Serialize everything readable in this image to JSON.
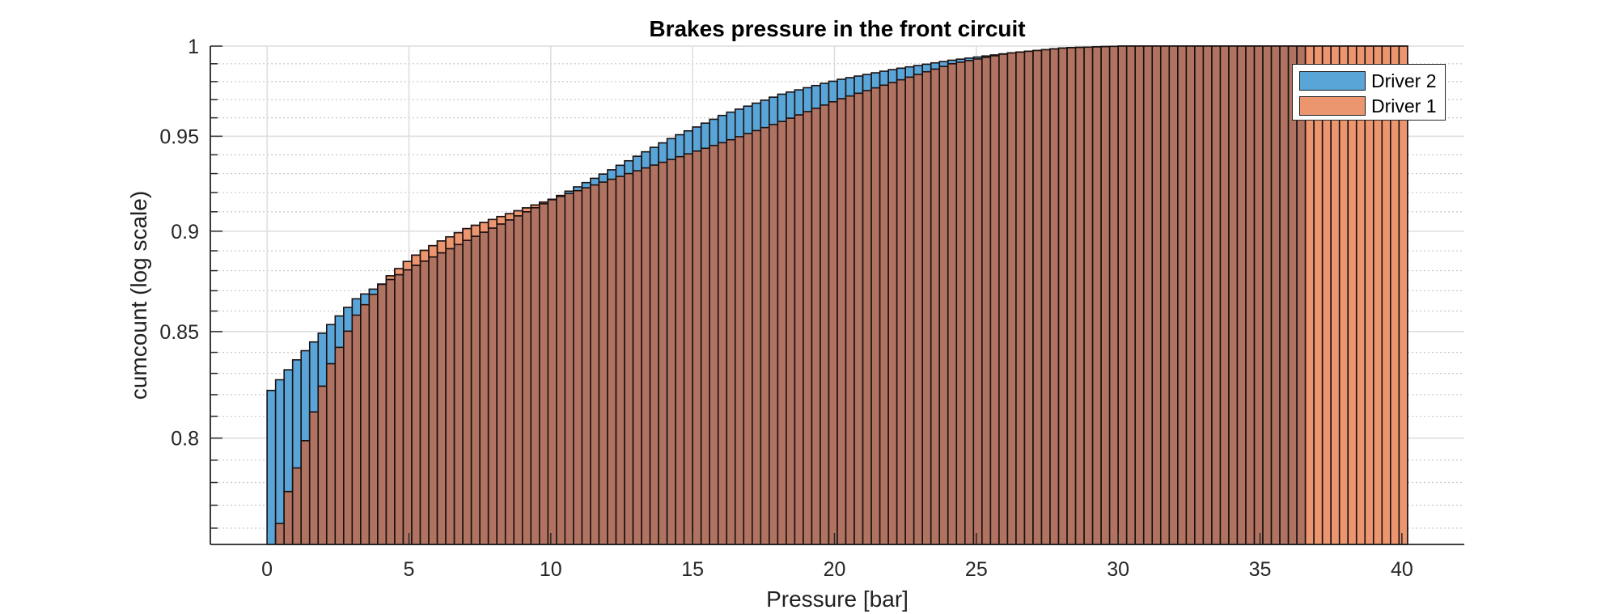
{
  "chart_data": {
    "type": "bar",
    "subtype": "cumulative histogram (overlaid)",
    "title": "Brakes pressure in the front circuit",
    "xlabel": "Pressure [bar]",
    "ylabel": "cumcount (log scale)",
    "xlim": [
      -2,
      42.2
    ],
    "ylim": [
      0.753,
      1
    ],
    "yscale": "log",
    "xticks": [
      0,
      5,
      10,
      15,
      20,
      25,
      30,
      35,
      40
    ],
    "yticks": [
      0.8,
      0.85,
      0.9,
      0.95,
      1
    ],
    "ytick_labels": [
      "0.8",
      "0.85",
      "0.9",
      "0.95",
      "1"
    ],
    "yminor_step": 0.01,
    "grid": true,
    "legend_position": "top-right",
    "bin_width": 0.3,
    "series": [
      {
        "name": "Driver 2",
        "color": "#5aa5d8",
        "x_start": 0,
        "x_end": 36.6,
        "anchors_x": [
          0,
          0.3,
          1,
          2,
          3,
          4,
          5,
          6,
          7,
          8,
          9,
          10,
          12,
          14,
          16,
          18,
          20,
          22,
          24,
          26,
          28,
          30,
          36.6
        ],
        "anchors_y": [
          0.822,
          0.827,
          0.838,
          0.852,
          0.866,
          0.874,
          0.882,
          0.889,
          0.896,
          0.903,
          0.91,
          0.917,
          0.932,
          0.948,
          0.962,
          0.973,
          0.981,
          0.987,
          0.992,
          0.996,
          0.999,
          1.0,
          1.0
        ]
      },
      {
        "name": "Driver 1",
        "color": "#ec9670",
        "x_start": 0.3,
        "x_end": 40.2,
        "anchors_x": [
          0.3,
          0.6,
          1,
          1.5,
          2,
          3,
          4,
          5,
          6,
          7,
          8,
          9,
          10,
          12,
          14,
          16,
          18,
          20,
          22,
          24,
          26,
          28,
          30,
          40.2
        ],
        "anchors_y": [
          0.762,
          0.776,
          0.79,
          0.812,
          0.832,
          0.858,
          0.875,
          0.887,
          0.895,
          0.902,
          0.907,
          0.912,
          0.917,
          0.927,
          0.937,
          0.947,
          0.958,
          0.97,
          0.98,
          0.99,
          0.996,
          0.999,
          1.0,
          1.0
        ]
      }
    ],
    "overlap_color": "#b07362"
  },
  "legend": {
    "items": [
      {
        "label": "Driver 2",
        "color": "#5aa5d8"
      },
      {
        "label": "Driver 1",
        "color": "#ec9670"
      }
    ]
  }
}
